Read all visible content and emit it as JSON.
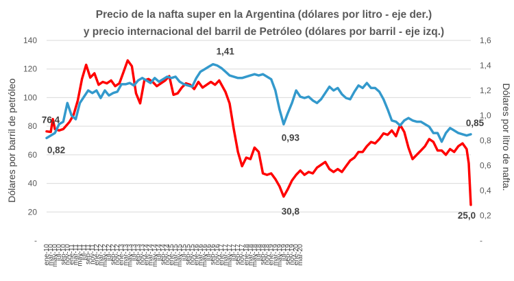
{
  "chart_data": {
    "type": "line",
    "title_line1": "Precio de la nafta super en la Argentina (dólares por litro - eje der.)",
    "title_line2": "y precio internacional del barril de Petróleo (dólares por barril - eje izq.)",
    "ylabel_left": "Dólares por barril de petróleo",
    "ylabel_right": "Dólares por litro de nafta.",
    "left_axis": {
      "ylim": [
        0,
        140
      ],
      "ticks": [
        0,
        20,
        40,
        60,
        80,
        100,
        120,
        140
      ],
      "tick_labels": [
        "-",
        "20",
        "40",
        "60",
        "80",
        "100",
        "120",
        "140"
      ]
    },
    "right_axis": {
      "ylim": [
        0,
        1.6
      ],
      "ticks": [
        0,
        0.2,
        0.4,
        0.6,
        0.8,
        1.0,
        1.2,
        1.4,
        1.6
      ],
      "tick_labels": [
        "-",
        "0,2",
        "0,4",
        "0,6",
        "0,8",
        "1,0",
        "1,2",
        "1,4",
        "1,6"
      ]
    },
    "x_start": "ene-10",
    "x_end": "mar-20",
    "x_tick_labels": [
      "ene-10",
      "mar-10",
      "may-10",
      "jul-10",
      "sep-10",
      "nov-10",
      "ene-11",
      "mar-11",
      "may-11",
      "jul-11",
      "sep-11",
      "nov-11",
      "ene-12",
      "mar-12",
      "may-12",
      "jul-12",
      "sep-12",
      "nov-12",
      "ene-13",
      "mar-13",
      "may-13",
      "jul-13",
      "sep-13",
      "nov-13",
      "ene-14",
      "mar-14",
      "may-14",
      "jul-14",
      "sep-14",
      "nov-14",
      "ene-15",
      "mar-15",
      "may-15",
      "jul-15",
      "sep-15",
      "nov-15",
      "ene-16",
      "mar-16",
      "may-16",
      "jul-16",
      "sep-16",
      "nov-16",
      "ene-17",
      "mar-17",
      "may-17",
      "jul-17",
      "sep-17",
      "nov-17",
      "ene-18",
      "mar-18",
      "may-18",
      "jul-18",
      "sep-18",
      "nov-18",
      "ene-19",
      "mar-19",
      "may-19",
      "jul-19",
      "sep-19",
      "nov-19",
      "ene-20",
      "mar-20"
    ],
    "series": [
      {
        "name": "Petróleo (dólares por barril - eje izq.)",
        "axis": "left",
        "color": "#ff0000",
        "anchors": [
          [
            0,
            76.4
          ],
          [
            2,
            76
          ],
          [
            3,
            85
          ],
          [
            4,
            78
          ],
          [
            6,
            77
          ],
          [
            8,
            78
          ],
          [
            11,
            83
          ],
          [
            13,
            88
          ],
          [
            15,
            98
          ],
          [
            17,
            113
          ],
          [
            19,
            123
          ],
          [
            21,
            114
          ],
          [
            23,
            117
          ],
          [
            25,
            109
          ],
          [
            27,
            111
          ],
          [
            29,
            110
          ],
          [
            31,
            112
          ],
          [
            33,
            108
          ],
          [
            35,
            110
          ],
          [
            37,
            118
          ],
          [
            39,
            126
          ],
          [
            41,
            122
          ],
          [
            43,
            103
          ],
          [
            45,
            96
          ],
          [
            47,
            112
          ],
          [
            49,
            113
          ],
          [
            51,
            111
          ],
          [
            53,
            108
          ],
          [
            55,
            110
          ],
          [
            57,
            112
          ],
          [
            59,
            115
          ],
          [
            61,
            102
          ],
          [
            63,
            103
          ],
          [
            65,
            107
          ],
          [
            67,
            110
          ],
          [
            69,
            109
          ],
          [
            71,
            106
          ],
          [
            73,
            111
          ],
          [
            75,
            107
          ],
          [
            77,
            109
          ],
          [
            79,
            111
          ],
          [
            81,
            109
          ],
          [
            83,
            112
          ],
          [
            86,
            104
          ],
          [
            88,
            96
          ],
          [
            90,
            78
          ],
          [
            92,
            62
          ],
          [
            94,
            52
          ],
          [
            96,
            58
          ],
          [
            98,
            57
          ],
          [
            100,
            65
          ],
          [
            102,
            62
          ],
          [
            104,
            47
          ],
          [
            106,
            46
          ],
          [
            108,
            47
          ],
          [
            110,
            43
          ],
          [
            112,
            38
          ],
          [
            114,
            30.8
          ],
          [
            116,
            36
          ],
          [
            118,
            42
          ],
          [
            120,
            46
          ],
          [
            122,
            49
          ],
          [
            124,
            46
          ],
          [
            126,
            48
          ],
          [
            128,
            47
          ],
          [
            130,
            51
          ],
          [
            132,
            53
          ],
          [
            134,
            55
          ],
          [
            136,
            50
          ],
          [
            138,
            48
          ],
          [
            140,
            50
          ],
          [
            142,
            48
          ],
          [
            144,
            52
          ],
          [
            146,
            56
          ],
          [
            148,
            58
          ],
          [
            150,
            62
          ],
          [
            152,
            62
          ],
          [
            154,
            66
          ],
          [
            156,
            69
          ],
          [
            158,
            68
          ],
          [
            160,
            71
          ],
          [
            162,
            75
          ],
          [
            164,
            74
          ],
          [
            166,
            77
          ],
          [
            168,
            73
          ],
          [
            170,
            81
          ],
          [
            172,
            76
          ],
          [
            174,
            65
          ],
          [
            176,
            57
          ],
          [
            178,
            60
          ],
          [
            180,
            63
          ],
          [
            182,
            66
          ],
          [
            184,
            71
          ],
          [
            186,
            69
          ],
          [
            188,
            63
          ],
          [
            190,
            63
          ],
          [
            192,
            60
          ],
          [
            194,
            64
          ],
          [
            196,
            62
          ],
          [
            198,
            66
          ],
          [
            200,
            68
          ],
          [
            202,
            64
          ],
          [
            203,
            54
          ],
          [
            204,
            25.0
          ]
        ]
      },
      {
        "name": "Nafta super Argentina (dólares por litro - eje der.)",
        "axis": "right",
        "color": "#3399cc",
        "anchors": [
          [
            0,
            0.82
          ],
          [
            2,
            0.84
          ],
          [
            4,
            0.86
          ],
          [
            6,
            0.93
          ],
          [
            8,
            0.95
          ],
          [
            10,
            1.1
          ],
          [
            12,
            1.0
          ],
          [
            14,
            0.97
          ],
          [
            16,
            1.1
          ],
          [
            18,
            1.15
          ],
          [
            20,
            1.2
          ],
          [
            22,
            1.18
          ],
          [
            24,
            1.2
          ],
          [
            26,
            1.14
          ],
          [
            28,
            1.2
          ],
          [
            30,
            1.16
          ],
          [
            32,
            1.18
          ],
          [
            34,
            1.19
          ],
          [
            36,
            1.25
          ],
          [
            38,
            1.25
          ],
          [
            40,
            1.26
          ],
          [
            42,
            1.24
          ],
          [
            44,
            1.28
          ],
          [
            46,
            1.3
          ],
          [
            48,
            1.28
          ],
          [
            50,
            1.26
          ],
          [
            52,
            1.3
          ],
          [
            54,
            1.27
          ],
          [
            56,
            1.29
          ],
          [
            58,
            1.31
          ],
          [
            60,
            1.3
          ],
          [
            62,
            1.31
          ],
          [
            64,
            1.27
          ],
          [
            66,
            1.25
          ],
          [
            68,
            1.24
          ],
          [
            70,
            1.23
          ],
          [
            72,
            1.3
          ],
          [
            74,
            1.35
          ],
          [
            76,
            1.37
          ],
          [
            78,
            1.39
          ],
          [
            80,
            1.41
          ],
          [
            82,
            1.4
          ],
          [
            84,
            1.38
          ],
          [
            86,
            1.35
          ],
          [
            88,
            1.32
          ],
          [
            90,
            1.31
          ],
          [
            92,
            1.3
          ],
          [
            94,
            1.3
          ],
          [
            96,
            1.31
          ],
          [
            98,
            1.32
          ],
          [
            100,
            1.33
          ],
          [
            102,
            1.32
          ],
          [
            104,
            1.33
          ],
          [
            106,
            1.31
          ],
          [
            108,
            1.29
          ],
          [
            110,
            1.2
          ],
          [
            112,
            1.05
          ],
          [
            114,
            0.93
          ],
          [
            116,
            1.02
          ],
          [
            118,
            1.1
          ],
          [
            120,
            1.2
          ],
          [
            122,
            1.15
          ],
          [
            124,
            1.14
          ],
          [
            126,
            1.15
          ],
          [
            128,
            1.12
          ],
          [
            130,
            1.1
          ],
          [
            132,
            1.13
          ],
          [
            134,
            1.18
          ],
          [
            136,
            1.23
          ],
          [
            138,
            1.2
          ],
          [
            140,
            1.22
          ],
          [
            142,
            1.17
          ],
          [
            144,
            1.14
          ],
          [
            146,
            1.13
          ],
          [
            148,
            1.19
          ],
          [
            150,
            1.24
          ],
          [
            152,
            1.22
          ],
          [
            154,
            1.26
          ],
          [
            156,
            1.22
          ],
          [
            158,
            1.22
          ],
          [
            160,
            1.19
          ],
          [
            162,
            1.13
          ],
          [
            164,
            1.05
          ],
          [
            166,
            0.96
          ],
          [
            168,
            0.95
          ],
          [
            170,
            0.92
          ],
          [
            172,
            0.96
          ],
          [
            174,
            0.98
          ],
          [
            176,
            0.96
          ],
          [
            178,
            0.95
          ],
          [
            180,
            0.95
          ],
          [
            182,
            0.93
          ],
          [
            184,
            0.91
          ],
          [
            186,
            0.86
          ],
          [
            188,
            0.86
          ],
          [
            190,
            0.79
          ],
          [
            192,
            0.86
          ],
          [
            194,
            0.9
          ],
          [
            196,
            0.88
          ],
          [
            198,
            0.86
          ],
          [
            200,
            0.85
          ],
          [
            202,
            0.84
          ],
          [
            204,
            0.85
          ]
        ]
      }
    ],
    "annotations": [
      {
        "text": "76,4",
        "series": "Petróleo",
        "month_index": 0,
        "value": 76.4
      },
      {
        "text": "0,82",
        "series": "Nafta",
        "month_index": 0,
        "value": 0.82
      },
      {
        "text": "1,41",
        "series": "Nafta",
        "month_index": 80,
        "value": 1.41
      },
      {
        "text": "0,93",
        "series": "Nafta",
        "month_index": 114,
        "value": 0.93
      },
      {
        "text": "30,8",
        "series": "Petróleo",
        "month_index": 114,
        "value": 30.8
      },
      {
        "text": "0,85",
        "series": "Nafta",
        "month_index": 204,
        "value": 0.85
      },
      {
        "text": "25,0",
        "series": "Petróleo",
        "month_index": 204,
        "value": 25.0
      }
    ]
  }
}
